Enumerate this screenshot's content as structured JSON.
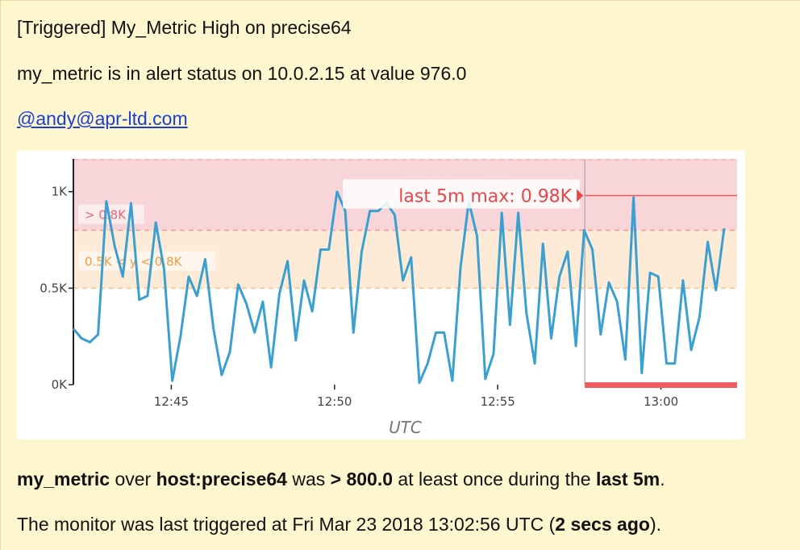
{
  "alert": {
    "title": "[Triggered] My_Metric High on precise64",
    "status_line": "my_metric is in alert status on 10.0.2.15 at value 976.0",
    "mention": "@andy@apr-ltd.com",
    "summary": {
      "metric": "my_metric",
      "over": " over ",
      "scope": "host:precise64",
      "was": " was ",
      "condition": "> 800.0",
      "middle": " at least once during the ",
      "window": "last 5m",
      "end": "."
    },
    "triggered": {
      "prefix": "The monitor was last triggered at Fri Mar 23 2018 13:02:56 UTC (",
      "ago": "2 secs ago",
      "suffix": ")."
    }
  },
  "chart_data": {
    "type": "line",
    "xlabel": "UTC",
    "ylabel": "",
    "x_ticks": [
      "12:45",
      "12:50",
      "12:55",
      "13:00"
    ],
    "y_ticks": [
      "0K",
      "0.5K",
      "1K"
    ],
    "ylim": [
      0,
      1170
    ],
    "x_range": [
      "12:42:00",
      "13:02:20"
    ],
    "thresholds": {
      "alert": {
        "label": "> 0.8K",
        "value": 800,
        "color": "#f7d5d8"
      },
      "warning": {
        "label": "0.5K < y < 0.8K",
        "low": 500,
        "high": 800,
        "color": "#fdebd7"
      }
    },
    "annotation": {
      "label": "last 5m max: 0.98K",
      "value": 980,
      "start": "12:57:40"
    },
    "alert_period_start": "12:57:40",
    "line_color": "#3a9fd1",
    "series": [
      {
        "values": [
          290,
          240,
          220,
          260,
          950,
          720,
          560,
          940,
          440,
          460,
          840,
          600,
          20,
          250,
          560,
          460,
          650,
          290,
          50,
          170,
          520,
          420,
          270,
          430,
          90,
          470,
          640,
          230,
          540,
          380,
          700,
          700,
          1000,
          900,
          270,
          690,
          900,
          900,
          940,
          880,
          540,
          660,
          10,
          110,
          270,
          270,
          20,
          610,
          950,
          770,
          30,
          160,
          890,
          310,
          890,
          370,
          110,
          730,
          240,
          560,
          690,
          200,
          800,
          700,
          260,
          530,
          430,
          130,
          970,
          60,
          580,
          560,
          110,
          110,
          540,
          180,
          350,
          740,
          490,
          810
        ]
      }
    ]
  }
}
